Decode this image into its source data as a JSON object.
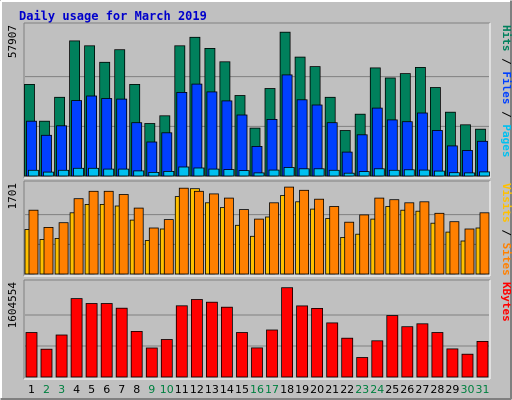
{
  "title": "Daily usage for March 2019",
  "colors": {
    "frame_bg": "#C0C0C0",
    "panel_bg": "#C0C0C0",
    "title": "#0000CC",
    "hits": "#00805C",
    "files": "#0040FF",
    "pages": "#00C0F0",
    "visits": "#FFC000",
    "sites": "#FF8000",
    "kbytes": "#FF0000",
    "weekday_label": "#000000",
    "weekend_label": "#008040"
  },
  "chart_data": [
    {
      "type": "bar",
      "title": "Daily usage for March 2019",
      "ylabel_parts": [
        "Pages",
        "Files",
        "Hits"
      ],
      "ymax_label": "57907",
      "ylim": [
        0,
        57907
      ],
      "categories": [
        "1",
        "2",
        "3",
        "4",
        "5",
        "6",
        "7",
        "8",
        "9",
        "10",
        "11",
        "12",
        "13",
        "14",
        "15",
        "16",
        "17",
        "18",
        "19",
        "20",
        "21",
        "22",
        "23",
        "24",
        "25",
        "26",
        "27",
        "28",
        "29",
        "30",
        "31"
      ],
      "weekend": [
        false,
        true,
        true,
        false,
        false,
        false,
        false,
        false,
        true,
        true,
        false,
        false,
        false,
        false,
        false,
        true,
        true,
        false,
        false,
        false,
        false,
        false,
        true,
        true,
        false,
        false,
        false,
        false,
        false,
        true,
        true
      ],
      "series": [
        {
          "name": "Hits",
          "values": [
            35600,
            21300,
            30600,
            52500,
            50600,
            44200,
            49100,
            35600,
            20400,
            23400,
            50600,
            53900,
            49600,
            44400,
            31300,
            18600,
            34000,
            55900,
            46200,
            42500,
            30600,
            17700,
            24000,
            42000,
            38100,
            39800,
            42200,
            34400,
            24800,
            19900,
            18200
          ]
        },
        {
          "name": "Files",
          "values": [
            21300,
            15800,
            19500,
            29300,
            31100,
            30100,
            29900,
            20700,
            13200,
            16800,
            32500,
            35700,
            32700,
            29200,
            23700,
            11500,
            22000,
            39300,
            29600,
            27600,
            20700,
            9300,
            16000,
            26400,
            21800,
            21100,
            24500,
            17700,
            11700,
            9900,
            13500
          ]
        },
        {
          "name": "Pages",
          "values": [
            2200,
            1500,
            2200,
            3000,
            3000,
            2700,
            2700,
            2000,
            1400,
            1800,
            3500,
            3100,
            2700,
            2500,
            2100,
            1200,
            2300,
            3300,
            2800,
            2800,
            2200,
            1100,
            1700,
            2800,
            2200,
            2400,
            2300,
            1900,
            1300,
            1200,
            1600
          ]
        }
      ]
    },
    {
      "type": "bar",
      "ylabel_parts": [
        "Sites",
        "Visits"
      ],
      "ymax_label": "1701",
      "ylim": [
        0,
        1701
      ],
      "categories": [
        "1",
        "2",
        "3",
        "4",
        "5",
        "6",
        "7",
        "8",
        "9",
        "10",
        "11",
        "12",
        "13",
        "14",
        "15",
        "16",
        "17",
        "18",
        "19",
        "20",
        "21",
        "22",
        "23",
        "24",
        "25",
        "26",
        "27",
        "28",
        "29",
        "30",
        "31"
      ],
      "series": [
        {
          "name": "Visits",
          "values": [
            850,
            660,
            680,
            1170,
            1330,
            1330,
            1300,
            1030,
            640,
            860,
            1480,
            1630,
            1360,
            1270,
            930,
            720,
            1090,
            1500,
            1380,
            1240,
            1060,
            700,
            760,
            1050,
            1290,
            1220,
            1200,
            970,
            800,
            630,
            880
          ]
        },
        {
          "name": "Sites",
          "values": [
            1220,
            890,
            980,
            1440,
            1580,
            1580,
            1520,
            1260,
            880,
            1040,
            1640,
            1580,
            1530,
            1450,
            1230,
            1050,
            1360,
            1660,
            1600,
            1430,
            1290,
            990,
            1130,
            1450,
            1420,
            1360,
            1380,
            1160,
            1000,
            860,
            1170
          ]
        }
      ]
    },
    {
      "type": "bar",
      "ylabel_parts": [
        "KBytes"
      ],
      "ymax_label": "1604554",
      "ylim": [
        0,
        1604554
      ],
      "categories": [
        "1",
        "2",
        "3",
        "4",
        "5",
        "6",
        "7",
        "8",
        "9",
        "10",
        "11",
        "12",
        "13",
        "14",
        "15",
        "16",
        "17",
        "18",
        "19",
        "20",
        "21",
        "22",
        "23",
        "24",
        "25",
        "26",
        "27",
        "28",
        "29",
        "30",
        "31"
      ],
      "series": [
        {
          "name": "KBytes",
          "values": [
            767000,
            479000,
            725000,
            1353000,
            1268000,
            1268000,
            1187000,
            786000,
            500000,
            647000,
            1229000,
            1337000,
            1290000,
            1205000,
            767000,
            502000,
            811000,
            1541000,
            1227000,
            1183000,
            933000,
            670000,
            337000,
            624000,
            1060000,
            868000,
            918000,
            767000,
            485000,
            394000,
            615000
          ]
        }
      ]
    }
  ]
}
